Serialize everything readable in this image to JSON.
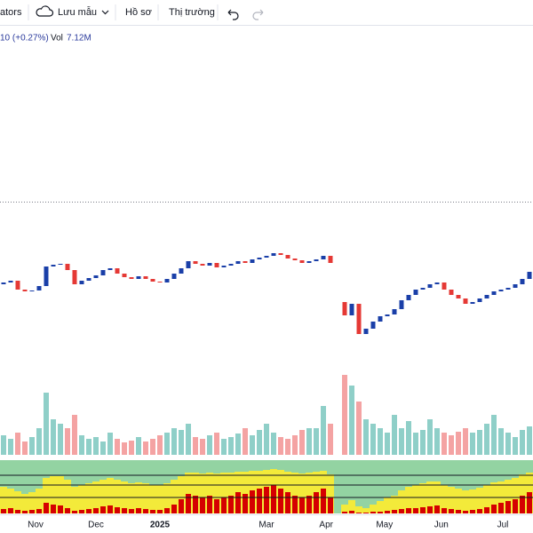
{
  "toolbar": {
    "indicators": "ators",
    "save": "Lưu mẫu",
    "profile": "Hồ sơ",
    "market": "Thị trường"
  },
  "legend": {
    "change": "10 (+0.27%)",
    "vol_label": "Vol",
    "vol_value": "7.12M"
  },
  "chart_data": {
    "type": "candlestick",
    "open": [
      80,
      82,
      84,
      74,
      72,
      73,
      78,
      100,
      102,
      103,
      96,
      80,
      84,
      87,
      90,
      96,
      98,
      92,
      88,
      86,
      89,
      86,
      83,
      82,
      86,
      92,
      98,
      106,
      103,
      101,
      104,
      99,
      101,
      103,
      106,
      104,
      108,
      110,
      112,
      115,
      113,
      109,
      107,
      104,
      106,
      108,
      112,
      null,
      60,
      45,
      58,
      24,
      30,
      38,
      44,
      46,
      52,
      62,
      68,
      74,
      76,
      80,
      82,
      74,
      68,
      64,
      58,
      60,
      64,
      68,
      72,
      74,
      76,
      80,
      86
    ],
    "close": [
      82,
      84,
      74,
      72,
      73,
      78,
      100,
      102,
      103,
      96,
      80,
      84,
      87,
      90,
      96,
      98,
      92,
      88,
      86,
      89,
      86,
      83,
      82,
      86,
      92,
      98,
      106,
      103,
      101,
      104,
      99,
      101,
      103,
      106,
      104,
      108,
      110,
      112,
      115,
      113,
      109,
      107,
      104,
      106,
      108,
      112,
      104,
      null,
      45,
      58,
      24,
      30,
      38,
      44,
      46,
      52,
      62,
      68,
      74,
      76,
      80,
      82,
      74,
      68,
      64,
      58,
      60,
      64,
      68,
      72,
      74,
      76,
      80,
      86,
      94
    ],
    "volume": [
      22,
      18,
      25,
      15,
      20,
      30,
      70,
      40,
      35,
      30,
      45,
      22,
      18,
      20,
      15,
      25,
      18,
      14,
      16,
      20,
      15,
      18,
      22,
      25,
      30,
      28,
      35,
      20,
      18,
      22,
      25,
      18,
      20,
      24,
      30,
      22,
      28,
      35,
      25,
      20,
      18,
      22,
      28,
      30,
      30,
      55,
      35,
      null,
      90,
      78,
      60,
      40,
      35,
      30,
      25,
      45,
      30,
      38,
      25,
      28,
      40,
      30,
      25,
      22,
      26,
      30,
      25,
      28,
      35,
      45,
      30,
      25,
      20,
      28,
      32
    ],
    "indicator": {
      "red": [
        5,
        6,
        4,
        3,
        4,
        5,
        12,
        10,
        9,
        6,
        3,
        4,
        5,
        6,
        8,
        9,
        7,
        6,
        5,
        6,
        5,
        4,
        4,
        6,
        10,
        16,
        22,
        20,
        18,
        20,
        16,
        18,
        20,
        24,
        22,
        26,
        28,
        30,
        32,
        28,
        24,
        20,
        18,
        20,
        24,
        28,
        18,
        null,
        2,
        3,
        1,
        1,
        2,
        2,
        3,
        4,
        5,
        6,
        6,
        7,
        8,
        9,
        6,
        5,
        4,
        3,
        4,
        5,
        7,
        10,
        12,
        14,
        16,
        20,
        24
      ],
      "yellow": [
        30,
        28,
        25,
        22,
        24,
        28,
        40,
        42,
        42,
        38,
        30,
        32,
        34,
        36,
        38,
        40,
        38,
        36,
        34,
        35,
        34,
        32,
        32,
        34,
        38,
        42,
        46,
        46,
        45,
        46,
        45,
        46,
        46,
        47,
        47,
        48,
        48,
        49,
        50,
        49,
        47,
        46,
        45,
        46,
        47,
        48,
        44,
        null,
        10,
        15,
        8,
        6,
        10,
        14,
        18,
        20,
        26,
        30,
        32,
        34,
        36,
        36,
        32,
        30,
        28,
        26,
        27,
        29,
        32,
        35,
        36,
        38,
        40,
        44,
        46
      ],
      "red_color": "#d50000",
      "yellow_color": "#f3ea3a",
      "base_color": "#93d3a2"
    },
    "ylim": [
      0,
      140
    ],
    "up_color": "#1a3fa8",
    "down_color": "#e53935",
    "volume_up_color": "#8fcfc8",
    "volume_down_color": "#f4a3a3",
    "xticks": [
      {
        "value": 4.5,
        "label": "Nov"
      },
      {
        "value": 13,
        "label": "Dec"
      },
      {
        "value": 22,
        "label": "2025"
      },
      {
        "value": 37,
        "label": "Mar"
      },
      {
        "value": 45.4,
        "label": "Apr"
      },
      {
        "value": 53.6,
        "label": "May"
      },
      {
        "value": 61.6,
        "label": "Jun"
      },
      {
        "value": 70.25,
        "label": "Jul"
      }
    ]
  }
}
